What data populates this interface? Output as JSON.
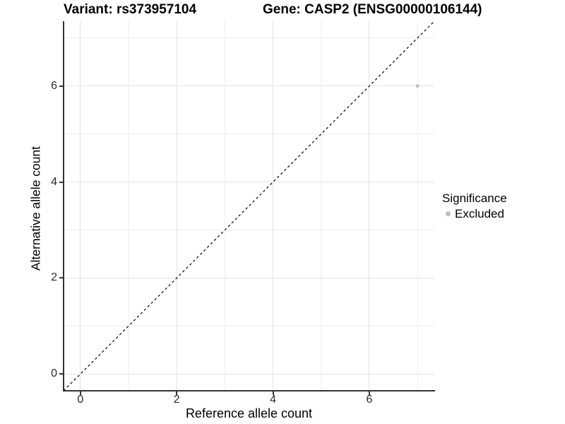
{
  "chart_data": {
    "type": "scatter",
    "title_left": "Variant: rs373957104",
    "title_right": "Gene: CASP2 (ENSG00000106144)",
    "xlabel": "Reference allele count",
    "ylabel": "Alternative allele count",
    "xlim": [
      -0.35,
      7.35
    ],
    "ylim": [
      -0.35,
      7.35
    ],
    "xticks": [
      0,
      2,
      4,
      6
    ],
    "yticks": [
      0,
      2,
      4,
      6
    ],
    "minor_xticks": [
      1,
      3,
      5,
      7
    ],
    "minor_yticks": [
      1,
      3,
      5,
      7
    ],
    "grid": "major+minor",
    "identity_line": {
      "type": "y=x",
      "style": "dashed",
      "color": "#000000"
    },
    "series": [
      {
        "name": "Excluded",
        "color": "#bdbdbd",
        "points": [
          {
            "x": 7,
            "y": 6
          }
        ]
      }
    ],
    "legend": {
      "title": "Significance",
      "position": "right",
      "items": [
        {
          "label": "Excluded",
          "color": "#bdbdbd",
          "marker": "circle"
        }
      ]
    }
  },
  "colors": {
    "background": "#ffffff",
    "axis_line": "#333333",
    "tick_label": "#2b2b2b",
    "grid_major": "#e3e3e3",
    "grid_minor": "#eeeeee",
    "point": "#bdbdbd",
    "identity_line": "#000000"
  }
}
